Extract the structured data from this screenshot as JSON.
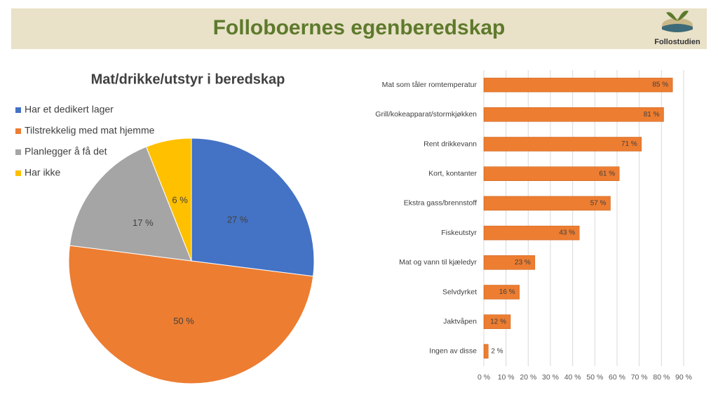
{
  "header": {
    "title": "Folloboernes egenberedskap",
    "logo": "Follostudien"
  },
  "chart_data": [
    {
      "type": "pie",
      "title": "Mat/drikke/utstyr i beredskap",
      "categories": [
        "Har et dedikert lager",
        "Tilstrekkelig med mat hjemme",
        "Planlegger å få det",
        "Har ikke"
      ],
      "values": [
        27,
        50,
        17,
        6
      ],
      "value_labels": [
        "27 %",
        "50 %",
        "17 %",
        "6 %"
      ],
      "colors": [
        "#4472c4",
        "#ed7d31",
        "#a5a5a5",
        "#ffc000"
      ],
      "legend": "top-left"
    },
    {
      "type": "bar",
      "orientation": "horizontal",
      "categories": [
        "Mat som tåler romtemperatur",
        "Grill/kokeapparat/stormkjøkken",
        "Rent drikkevann",
        "Kort, kontanter",
        "Ekstra gass/brennstoff",
        "Fiskeutstyr",
        "Mat og vann til kjæledyr",
        "Selvdyrket",
        "Jaktvåpen",
        "Ingen av disse"
      ],
      "values": [
        85,
        81,
        71,
        61,
        57,
        43,
        23,
        16,
        12,
        2
      ],
      "value_labels": [
        "85 %",
        "81 %",
        "71 %",
        "61 %",
        "57 %",
        "43 %",
        "23 %",
        "16 %",
        "12 %",
        "2 %"
      ],
      "color": "#ed7d31",
      "xlim": [
        0,
        90
      ],
      "xticks": [
        {
          "value": 0,
          "label": "0 %"
        },
        {
          "value": 10,
          "label": "10 %"
        },
        {
          "value": 20,
          "label": "20 %"
        },
        {
          "value": 30,
          "label": "30 %"
        },
        {
          "value": 40,
          "label": "40 %"
        },
        {
          "value": 50,
          "label": "50 %"
        },
        {
          "value": 60,
          "label": "60 %"
        },
        {
          "value": 70,
          "label": "70 %"
        },
        {
          "value": 80,
          "label": "80 %"
        },
        {
          "value": 90,
          "label": "90 %"
        }
      ],
      "grid": true
    }
  ]
}
